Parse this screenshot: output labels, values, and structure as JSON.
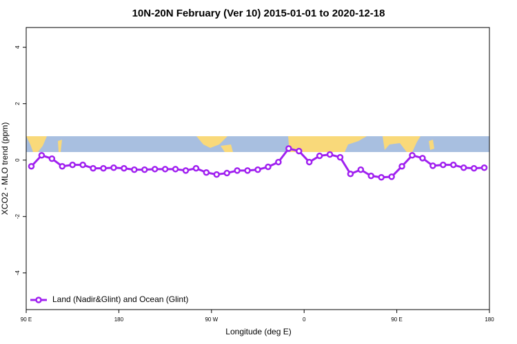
{
  "chart_data": {
    "type": "line",
    "title": "10N-20N February (Ver 10)   2015-01-01 to 2020-12-18",
    "x_label": "Longitude (deg E)",
    "y_label": "XCO2 - MLO trend (ppm)",
    "x": [
      95,
      105,
      115,
      125,
      135,
      145,
      155,
      165,
      175,
      185,
      195,
      205,
      215,
      225,
      235,
      245,
      255,
      265,
      275,
      285,
      295,
      305,
      315,
      325,
      335,
      345,
      355,
      365,
      375,
      385,
      395,
      405,
      415,
      425,
      435,
      445,
      455,
      465,
      475,
      485,
      495,
      505,
      515,
      525,
      535
    ],
    "series": [
      {
        "name": "Land (Nadir&Glint) and Ocean (Glint)",
        "color": "#a020f0",
        "values": [
          -0.22,
          0.17,
          0.05,
          -0.22,
          -0.17,
          -0.17,
          -0.29,
          -0.29,
          -0.27,
          -0.29,
          -0.34,
          -0.34,
          -0.32,
          -0.32,
          -0.32,
          -0.37,
          -0.29,
          -0.44,
          -0.51,
          -0.46,
          -0.37,
          -0.37,
          -0.34,
          -0.24,
          -0.07,
          0.41,
          0.32,
          -0.07,
          0.15,
          0.2,
          0.1,
          -0.49,
          -0.34,
          -0.56,
          -0.61,
          -0.59,
          -0.22,
          0.17,
          0.07,
          -0.2,
          -0.17,
          -0.17,
          -0.27,
          -0.29,
          -0.27
        ]
      }
    ],
    "xlim": [
      90,
      540
    ],
    "xticks": [
      {
        "value": 90,
        "label": "90 E"
      },
      180,
      {
        "value": 270,
        "label": "90 W"
      },
      {
        "value": 360,
        "label": "0"
      },
      {
        "value": 450,
        "label": "90 E"
      },
      {
        "value": 540,
        "label": "180"
      }
    ],
    "ylim": [
      -5.3,
      4.7
    ],
    "yticks": [
      -4,
      -2,
      0,
      2,
      4
    ],
    "legend": "bottom-left"
  }
}
